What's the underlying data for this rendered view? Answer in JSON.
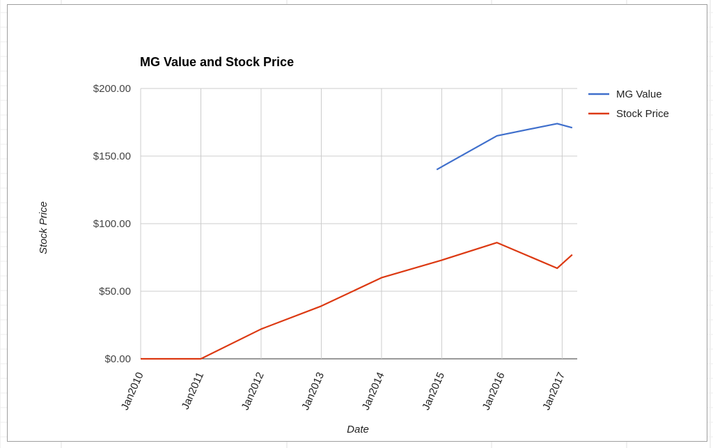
{
  "chart_data": {
    "type": "line",
    "title": "MG Value and Stock Price",
    "xlabel": "Date",
    "ylabel": "Stock Price",
    "ylim": [
      0,
      200
    ],
    "y_ticks": [
      "$0.00",
      "$50.00",
      "$100.00",
      "$150.00",
      "$200.00"
    ],
    "y_tick_values": [
      0,
      50,
      100,
      150,
      200
    ],
    "x_ticks": [
      "Jan2010",
      "Jan2011",
      "Jan2012",
      "Jan2013",
      "Jan2014",
      "Jan2015",
      "Jan2016",
      "Jan2017"
    ],
    "grid": true,
    "legend_position": "right",
    "series": [
      {
        "name": "MG Value",
        "color": "#3f6fcc",
        "points": [
          {
            "x": "Dec2014",
            "y": 140
          },
          {
            "x": "Dec2015",
            "y": 165
          },
          {
            "x": "Dec2016",
            "y": 174
          },
          {
            "x": "Mar2017",
            "y": 171
          }
        ]
      },
      {
        "name": "Stock Price",
        "color": "#dc3912",
        "points": [
          {
            "x": "Jan2010",
            "y": 0
          },
          {
            "x": "Jan2011",
            "y": 0
          },
          {
            "x": "Jan2012",
            "y": 22
          },
          {
            "x": "Jan2013",
            "y": 39
          },
          {
            "x": "Jan2014",
            "y": 60
          },
          {
            "x": "Jan2015",
            "y": 73
          },
          {
            "x": "Dec2015",
            "y": 86
          },
          {
            "x": "Dec2016",
            "y": 67
          },
          {
            "x": "Mar2017",
            "y": 77
          }
        ]
      }
    ]
  }
}
